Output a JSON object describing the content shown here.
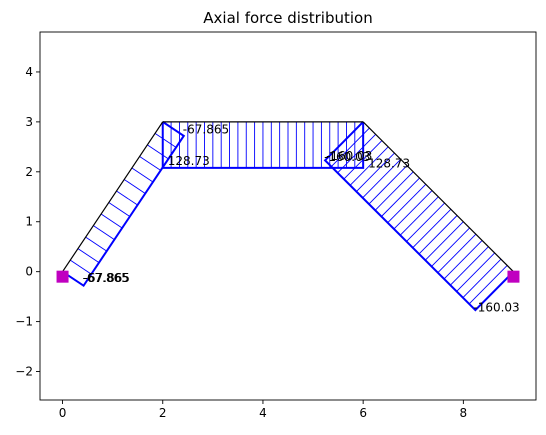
{
  "chart_data": {
    "type": "line",
    "title": "Axial force distribution",
    "xlabel": "",
    "ylabel": "",
    "xlim": [
      -0.45,
      9.45
    ],
    "ylim": [
      -2.57,
      4.8
    ],
    "x_ticks": [
      0,
      2,
      4,
      6,
      8
    ],
    "y_ticks": [
      -2,
      -1,
      0,
      1,
      2,
      3,
      4
    ],
    "grid": false,
    "colors": {
      "structure": "#000000",
      "force": "#0000ff",
      "support": "#c000c0"
    },
    "nodes": [
      {
        "id": 1,
        "x": 0,
        "y": 0
      },
      {
        "id": 2,
        "x": 2,
        "y": 3
      },
      {
        "id": 3,
        "x": 6,
        "y": 3
      },
      {
        "id": 4,
        "x": 9,
        "y": 0
      }
    ],
    "supports": [
      {
        "x": 0,
        "y": -0.1
      },
      {
        "x": 9,
        "y": -0.1
      }
    ],
    "members": [
      {
        "from": 1,
        "to": 2,
        "force_start": -67.865,
        "force_end": -67.865,
        "hatch_count": 13
      },
      {
        "from": 2,
        "to": 3,
        "force_start": 128.73,
        "force_end": 128.73,
        "hatch_count": 24
      },
      {
        "from": 3,
        "to": 4,
        "force_start": -160.03,
        "force_end": -160.03,
        "hatch_count": 24
      }
    ],
    "force_diagram_polygons": [
      [
        [
          0,
          0
        ],
        [
          2,
          3
        ],
        [
          2.42,
          2.72
        ],
        [
          0.42,
          -0.28
        ]
      ],
      [
        [
          2,
          3
        ],
        [
          6,
          3
        ],
        [
          6,
          2.08
        ],
        [
          2,
          2.08
        ]
      ],
      [
        [
          6,
          3
        ],
        [
          9,
          0
        ],
        [
          8.24,
          -0.77
        ],
        [
          5.24,
          2.23
        ]
      ]
    ],
    "annotations": [
      {
        "text": "-67.865",
        "x": 2.4,
        "y": 2.85
      },
      {
        "text": "128.73",
        "x": 2.1,
        "y": 2.22
      },
      {
        "text": "-67.865",
        "x": 0.4,
        "y": -0.13
      },
      {
        "text": "-67.865",
        "x": 0.42,
        "y": -0.13
      },
      {
        "text": "-160.03",
        "x": 5.22,
        "y": 2.3
      },
      {
        "text": "-160.03",
        "x": 5.26,
        "y": 2.32
      },
      {
        "text": "128.73",
        "x": 6.1,
        "y": 2.17
      },
      {
        "text": "-160.03",
        "x": 8.2,
        "y": -0.72
      }
    ]
  }
}
